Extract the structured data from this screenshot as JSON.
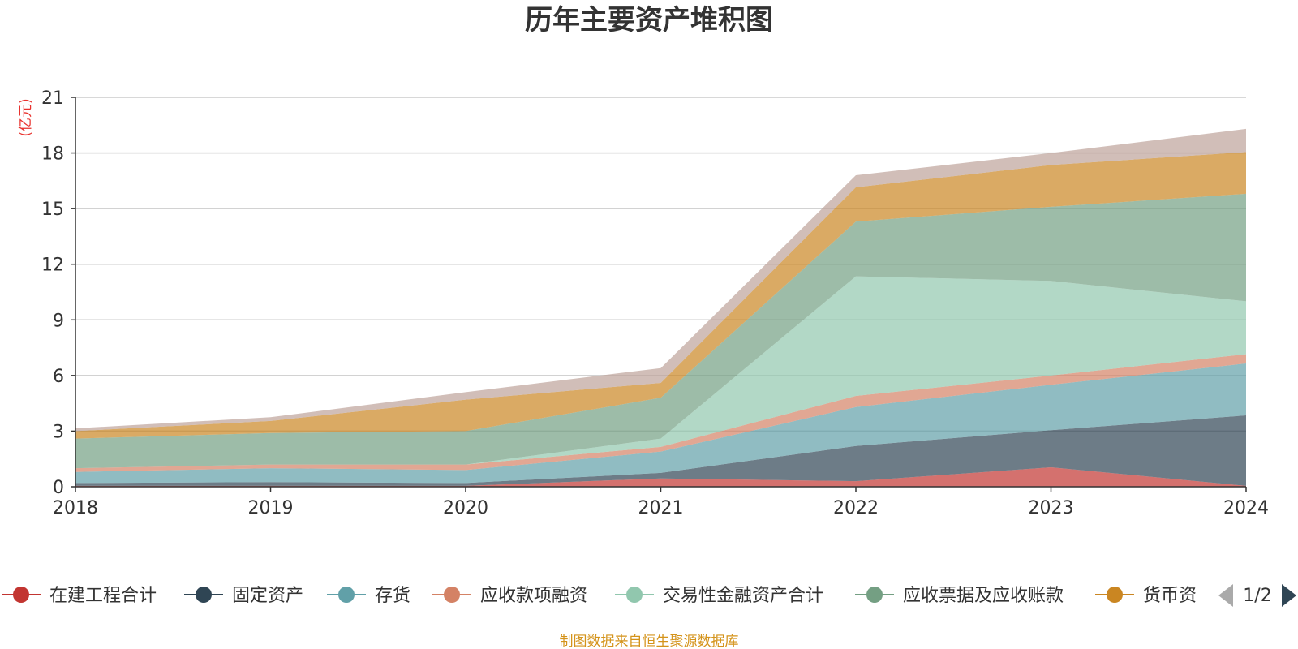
{
  "chart_data": {
    "type": "area",
    "stacked": true,
    "title": "历年主要资产堆积图",
    "unit_label": "(亿元)",
    "x": [
      "2018",
      "2019",
      "2020",
      "2021",
      "2022",
      "2023",
      "2024"
    ],
    "ylim": [
      0,
      21
    ],
    "yticks": [
      "0",
      "3",
      "6",
      "9",
      "12",
      "15",
      "18",
      "21"
    ],
    "grid": true,
    "series": [
      {
        "name": "在建工程合计",
        "color": "#c23531",
        "values": [
          0.05,
          0.05,
          0.05,
          0.45,
          0.3,
          1.05,
          0.05
        ]
      },
      {
        "name": "固定资产",
        "color": "#2f4554",
        "values": [
          0.15,
          0.2,
          0.15,
          0.3,
          1.9,
          2.0,
          3.8
        ]
      },
      {
        "name": "存货",
        "color": "#61a0a8",
        "values": [
          0.6,
          0.75,
          0.7,
          1.15,
          2.1,
          2.45,
          2.8
        ]
      },
      {
        "name": "应收款项融资",
        "color": "#d48265",
        "values": [
          0.2,
          0.2,
          0.3,
          0.25,
          0.6,
          0.5,
          0.5
        ]
      },
      {
        "name": "交易性金融资产合计",
        "color": "#91c7ae",
        "values": [
          0.0,
          0.0,
          0.0,
          0.45,
          6.45,
          5.1,
          2.85
        ]
      },
      {
        "name": "应收票据及应收账款",
        "color": "#749f83",
        "values": [
          1.6,
          1.7,
          1.8,
          2.2,
          2.95,
          4.0,
          5.8
        ]
      },
      {
        "name": "货币资金",
        "color": "#ca8622",
        "values": [
          0.4,
          0.65,
          1.7,
          0.8,
          1.85,
          2.25,
          2.25
        ]
      },
      {
        "name": "",
        "color": "#bda29a",
        "values": [
          0.15,
          0.2,
          0.4,
          0.8,
          0.65,
          0.65,
          1.25
        ]
      }
    ],
    "legend": {
      "position": "bottom",
      "visible_items": [
        {
          "label": "在建工程合计",
          "color": "#c23531"
        },
        {
          "label": "固定资产",
          "color": "#2f4554"
        },
        {
          "label": "存货",
          "color": "#61a0a8"
        },
        {
          "label": "应收款项融资",
          "color": "#d48265"
        },
        {
          "label": "交易性金融资产合计",
          "color": "#91c7ae"
        },
        {
          "label": "应收票据及应收账款",
          "color": "#749f83"
        },
        {
          "label": "货币资",
          "color": "#ca8622"
        }
      ],
      "page_indicator": "1/2"
    },
    "source_note": "制图数据来自恒生聚源数据库"
  }
}
